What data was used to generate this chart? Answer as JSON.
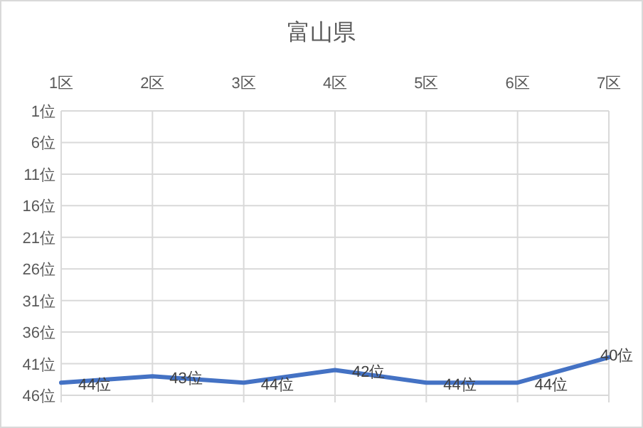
{
  "chart_data": {
    "type": "line",
    "title": "富山県",
    "categories": [
      "1区",
      "2区",
      "3区",
      "4区",
      "5区",
      "6区",
      "7区"
    ],
    "series": [
      {
        "color": "#4472c4",
        "values": [
          44,
          43,
          44,
          42,
          44,
          44,
          40
        ],
        "value_labels": [
          "44位",
          "43位",
          "44位",
          "42位",
          "44位",
          "44位",
          "40位"
        ]
      }
    ],
    "ylim": [
      46,
      1
    ],
    "yticks": [
      {
        "value": 1,
        "label": "1位"
      },
      {
        "value": 6,
        "label": "6位"
      },
      {
        "value": 11,
        "label": "11位"
      },
      {
        "value": 16,
        "label": "16位"
      },
      {
        "value": 21,
        "label": "21位"
      },
      {
        "value": 26,
        "label": "26位"
      },
      {
        "value": 31,
        "label": "31位"
      },
      {
        "value": 36,
        "label": "36位"
      },
      {
        "value": 41,
        "label": "41位"
      },
      {
        "value": 46,
        "label": "46位"
      }
    ],
    "grid": true
  }
}
